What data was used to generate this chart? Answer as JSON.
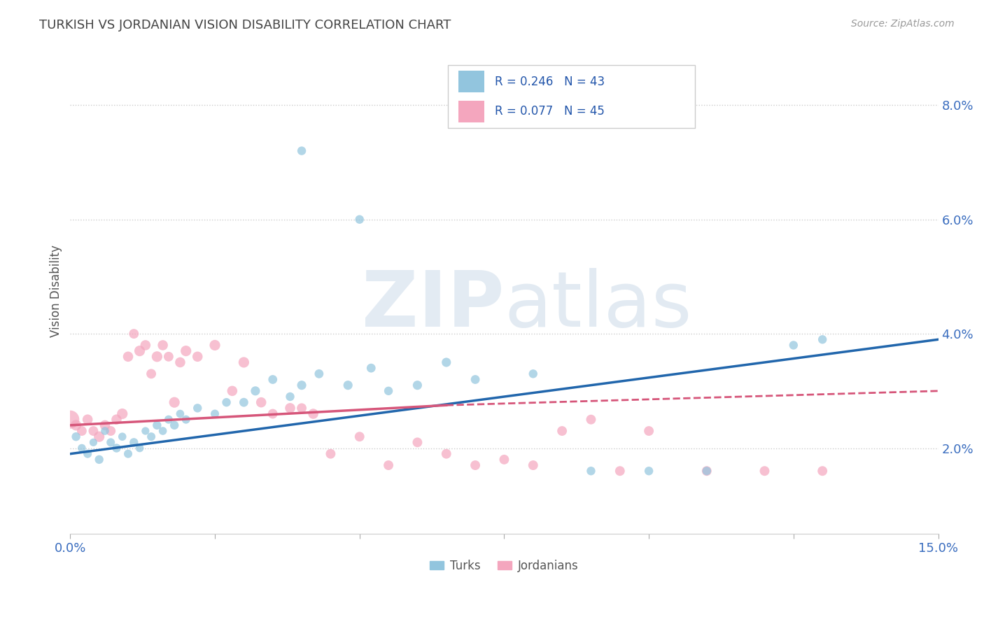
{
  "title": "TURKISH VS JORDANIAN VISION DISABILITY CORRELATION CHART",
  "source": "Source: ZipAtlas.com",
  "ylabel": "Vision Disability",
  "xlim": [
    0.0,
    0.15
  ],
  "ylim": [
    0.005,
    0.09
  ],
  "yticks": [
    0.02,
    0.04,
    0.06,
    0.08
  ],
  "yticklabels": [
    "2.0%",
    "4.0%",
    "6.0%",
    "8.0%"
  ],
  "turks_color": "#92c5de",
  "jordanians_color": "#f4a6be",
  "turks_line_color": "#2166ac",
  "jordanians_line_color": "#d6567a",
  "R_turks": 0.246,
  "N_turks": 43,
  "R_jordanians": 0.077,
  "N_jordanians": 45,
  "turks_x": [
    0.001,
    0.002,
    0.003,
    0.004,
    0.005,
    0.006,
    0.007,
    0.008,
    0.009,
    0.01,
    0.011,
    0.012,
    0.013,
    0.014,
    0.015,
    0.016,
    0.017,
    0.018,
    0.019,
    0.02,
    0.022,
    0.025,
    0.027,
    0.03,
    0.032,
    0.035,
    0.038,
    0.04,
    0.043,
    0.048,
    0.052,
    0.06,
    0.065,
    0.07,
    0.08,
    0.09,
    0.1,
    0.11,
    0.125,
    0.04,
    0.05,
    0.055,
    0.13
  ],
  "turks_y": [
    0.022,
    0.02,
    0.019,
    0.021,
    0.018,
    0.023,
    0.021,
    0.02,
    0.022,
    0.019,
    0.021,
    0.02,
    0.023,
    0.022,
    0.024,
    0.023,
    0.025,
    0.024,
    0.026,
    0.025,
    0.027,
    0.026,
    0.028,
    0.028,
    0.03,
    0.032,
    0.029,
    0.031,
    0.033,
    0.031,
    0.034,
    0.031,
    0.035,
    0.032,
    0.033,
    0.016,
    0.016,
    0.016,
    0.038,
    0.072,
    0.06,
    0.03,
    0.039
  ],
  "turks_sizes": [
    80,
    70,
    75,
    65,
    80,
    70,
    75,
    80,
    70,
    75,
    80,
    70,
    65,
    75,
    80,
    70,
    75,
    80,
    70,
    75,
    80,
    75,
    80,
    85,
    90,
    85,
    80,
    90,
    85,
    90,
    85,
    90,
    90,
    85,
    80,
    80,
    80,
    80,
    80,
    80,
    80,
    80,
    80
  ],
  "jordanians_x": [
    0.0,
    0.001,
    0.002,
    0.003,
    0.004,
    0.005,
    0.006,
    0.007,
    0.008,
    0.009,
    0.01,
    0.011,
    0.012,
    0.013,
    0.014,
    0.015,
    0.016,
    0.017,
    0.018,
    0.019,
    0.02,
    0.022,
    0.025,
    0.028,
    0.03,
    0.033,
    0.035,
    0.038,
    0.04,
    0.042,
    0.045,
    0.05,
    0.055,
    0.06,
    0.065,
    0.07,
    0.075,
    0.08,
    0.085,
    0.09,
    0.095,
    0.1,
    0.11,
    0.12,
    0.13
  ],
  "jordanians_y": [
    0.025,
    0.024,
    0.023,
    0.025,
    0.023,
    0.022,
    0.024,
    0.023,
    0.025,
    0.026,
    0.036,
    0.04,
    0.037,
    0.038,
    0.033,
    0.036,
    0.038,
    0.036,
    0.028,
    0.035,
    0.037,
    0.036,
    0.038,
    0.03,
    0.035,
    0.028,
    0.026,
    0.027,
    0.027,
    0.026,
    0.019,
    0.022,
    0.017,
    0.021,
    0.019,
    0.017,
    0.018,
    0.017,
    0.023,
    0.025,
    0.016,
    0.023,
    0.016,
    0.016,
    0.016
  ],
  "jordanians_sizes": [
    350,
    120,
    100,
    110,
    100,
    120,
    110,
    100,
    110,
    120,
    110,
    100,
    120,
    110,
    100,
    120,
    110,
    100,
    120,
    110,
    120,
    110,
    120,
    110,
    120,
    110,
    100,
    110,
    100,
    110,
    100,
    100,
    100,
    100,
    100,
    100,
    100,
    100,
    100,
    100,
    100,
    100,
    100,
    100,
    100
  ],
  "background_color": "#ffffff",
  "watermark_color": "#d0dce8",
  "grid_color": "#cccccc"
}
